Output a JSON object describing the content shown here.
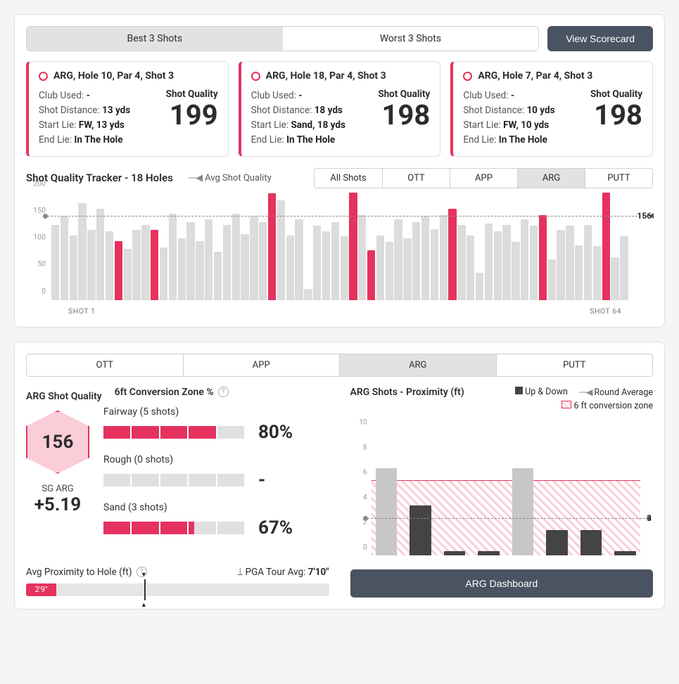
{
  "colors": {
    "accent": "#e5325e",
    "bar_muted": "#dcdcdc",
    "dark": "#4a5361"
  },
  "top": {
    "tabs": {
      "best": "Best 3 Shots",
      "worst": "Worst 3 Shots",
      "active": "best"
    },
    "scorecard_btn": "View Scorecard"
  },
  "cards": [
    {
      "title": "ARG, Hole 10, Par 4, Shot 3",
      "club_lbl": "Club Used: ",
      "club": "-",
      "dist_lbl": "Shot Distance: ",
      "dist": "13 yds",
      "start_lbl": "Start Lie: ",
      "start": "FW, 13 yds",
      "end_lbl": "End Lie: ",
      "end": "In The Hole",
      "sq_lbl": "Shot Quality",
      "sq": "199"
    },
    {
      "title": "ARG, Hole 18, Par 4, Shot 3",
      "club_lbl": "Club Used: ",
      "club": "-",
      "dist_lbl": "Shot Distance: ",
      "dist": "18 yds",
      "start_lbl": "Start Lie: ",
      "start": "Sand, 18 yds",
      "end_lbl": "End Lie: ",
      "end": "In The Hole",
      "sq_lbl": "Shot Quality",
      "sq": "198"
    },
    {
      "title": "ARG, Hole 7, Par 4, Shot 3",
      "club_lbl": "Club Used: ",
      "club": "-",
      "dist_lbl": "Shot Distance: ",
      "dist": "10 yds",
      "start_lbl": "Start Lie: ",
      "start": "FW, 10 yds",
      "end_lbl": "End Lie: ",
      "end": "In The Hole",
      "sq_lbl": "Shot Quality",
      "sq": "198"
    }
  ],
  "tracker": {
    "title": "Shot Quality Tracker - 18 Holes",
    "legend": "Avg Shot Quality",
    "tabs": [
      "All Shots",
      "OTT",
      "APP",
      "ARG",
      "PUTT"
    ],
    "active_tab": "ARG",
    "y_ticks": [
      0,
      50,
      100,
      150,
      200
    ],
    "y_max": 200,
    "avg": 156,
    "x_first": "SHOT 1",
    "x_last": "SHOT 64",
    "bars": [
      {
        "v": 140,
        "hi": false
      },
      {
        "v": 155,
        "hi": false
      },
      {
        "v": 120,
        "hi": false
      },
      {
        "v": 180,
        "hi": false
      },
      {
        "v": 130,
        "hi": false
      },
      {
        "v": 170,
        "hi": false
      },
      {
        "v": 128,
        "hi": false
      },
      {
        "v": 110,
        "hi": true
      },
      {
        "v": 95,
        "hi": false
      },
      {
        "v": 130,
        "hi": false
      },
      {
        "v": 140,
        "hi": false
      },
      {
        "v": 130,
        "hi": true
      },
      {
        "v": 98,
        "hi": false
      },
      {
        "v": 160,
        "hi": false
      },
      {
        "v": 115,
        "hi": false
      },
      {
        "v": 145,
        "hi": false
      },
      {
        "v": 110,
        "hi": false
      },
      {
        "v": 150,
        "hi": false
      },
      {
        "v": 90,
        "hi": false
      },
      {
        "v": 140,
        "hi": false
      },
      {
        "v": 160,
        "hi": false
      },
      {
        "v": 122,
        "hi": false
      },
      {
        "v": 155,
        "hi": false
      },
      {
        "v": 145,
        "hi": false
      },
      {
        "v": 198,
        "hi": true
      },
      {
        "v": 185,
        "hi": false
      },
      {
        "v": 120,
        "hi": false
      },
      {
        "v": 150,
        "hi": false
      },
      {
        "v": 20,
        "hi": false
      },
      {
        "v": 138,
        "hi": false
      },
      {
        "v": 128,
        "hi": false
      },
      {
        "v": 145,
        "hi": false
      },
      {
        "v": 118,
        "hi": false
      },
      {
        "v": 200,
        "hi": true
      },
      {
        "v": 158,
        "hi": false
      },
      {
        "v": 92,
        "hi": true
      },
      {
        "v": 120,
        "hi": false
      },
      {
        "v": 108,
        "hi": false
      },
      {
        "v": 150,
        "hi": false
      },
      {
        "v": 115,
        "hi": false
      },
      {
        "v": 145,
        "hi": false
      },
      {
        "v": 155,
        "hi": false
      },
      {
        "v": 132,
        "hi": false
      },
      {
        "v": 158,
        "hi": false
      },
      {
        "v": 170,
        "hi": true
      },
      {
        "v": 140,
        "hi": false
      },
      {
        "v": 120,
        "hi": false
      },
      {
        "v": 50,
        "hi": false
      },
      {
        "v": 142,
        "hi": false
      },
      {
        "v": 128,
        "hi": false
      },
      {
        "v": 140,
        "hi": false
      },
      {
        "v": 108,
        "hi": false
      },
      {
        "v": 150,
        "hi": false
      },
      {
        "v": 138,
        "hi": false
      },
      {
        "v": 158,
        "hi": true
      },
      {
        "v": 75,
        "hi": false
      },
      {
        "v": 130,
        "hi": false
      },
      {
        "v": 138,
        "hi": false
      },
      {
        "v": 102,
        "hi": false
      },
      {
        "v": 140,
        "hi": false
      },
      {
        "v": 100,
        "hi": false
      },
      {
        "v": 200,
        "hi": true
      },
      {
        "v": 80,
        "hi": false
      },
      {
        "v": 118,
        "hi": false
      }
    ]
  },
  "lower": {
    "tabs": [
      "OTT",
      "APP",
      "ARG",
      "PUTT"
    ],
    "active_tab": "ARG",
    "sq_title": "ARG Shot Quality",
    "hex_val": "156",
    "sg_lbl": "SG ARG",
    "sg_val": "+5.19",
    "cz_title": "6ft Conversion Zone %",
    "cz_rows": [
      {
        "label": "Fairway (5 shots)",
        "filled": 4,
        "total": 5,
        "pct": "80%"
      },
      {
        "label": "Rough (0 shots)",
        "filled": 0,
        "total": 5,
        "pct": "-"
      },
      {
        "label": "Sand (3 shots)",
        "filled": 3.2,
        "total": 5,
        "pct": "67%"
      }
    ],
    "prox_title": "ARG Shots - Proximity (ft)",
    "lg_updown": "Up & Down",
    "lg_round": "Round Average",
    "lg_zone": "6 ft conversion zone",
    "prox": {
      "y_max": 11,
      "y_ticks": [
        0,
        2,
        4,
        6,
        8,
        10
      ],
      "zone_top": 6,
      "avg": 3,
      "avg_label": "3",
      "bars": [
        {
          "v": 7,
          "out": true
        },
        {
          "v": 4,
          "out": false
        },
        {
          "v": 0.3,
          "out": false
        },
        {
          "v": 0.3,
          "out": false
        },
        {
          "v": 7,
          "out": true
        },
        {
          "v": 2,
          "out": false
        },
        {
          "v": 2,
          "out": false
        },
        {
          "v": 0.3,
          "out": false
        }
      ]
    },
    "dash_btn": "ARG Dashboard",
    "avg_prox_lbl": "Avg Proximity to Hole (ft)",
    "pga_lbl": "PGA Tour Avg:",
    "pga_val": "7'10\"",
    "scale_val": "2'9\"",
    "scale_fill_pct": 10,
    "scale_mark_pct": 39
  }
}
